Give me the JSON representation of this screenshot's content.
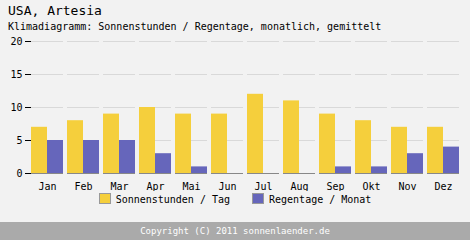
{
  "chart_data": {
    "type": "bar",
    "title": "USA,  Artesia",
    "subtitle": "Klimadiagramm: Sonnenstunden / Regentage, monatlich, gemittelt",
    "caption": "Copyright (C) 2011 sonnenlaender.de",
    "categories": [
      "Jan",
      "Feb",
      "Mar",
      "Apr",
      "Mai",
      "Jun",
      "Jul",
      "Aug",
      "Sep",
      "Okt",
      "Nov",
      "Dez"
    ],
    "series": [
      {
        "name": "Sonnenstunden / Tag",
        "color": "#F5CF3C",
        "values": [
          7,
          8,
          9,
          10,
          9,
          9,
          12,
          11,
          9,
          8,
          7,
          7
        ]
      },
      {
        "name": "Regentage / Monat",
        "color": "#6666BB",
        "values": [
          5,
          5,
          5,
          3,
          1,
          0,
          0,
          0,
          1,
          1,
          3,
          4
        ]
      }
    ],
    "ylim": [
      0,
      20
    ],
    "yticks": [
      0,
      5,
      10,
      15,
      20
    ],
    "grid": true,
    "legend": "bottom"
  }
}
